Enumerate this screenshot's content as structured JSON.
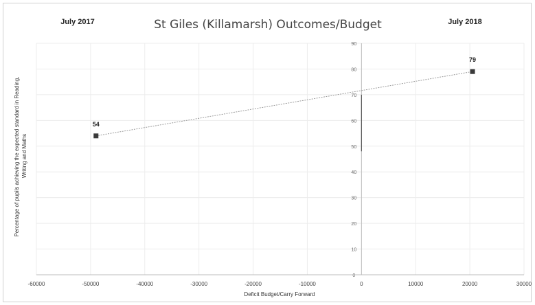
{
  "chart_data": {
    "type": "scatter",
    "title": "St Giles (Killamarsh) Outcomes/Budget",
    "xlabel": "Deficit Budget/Carry Forward",
    "ylabel": "Percentage of pupils achieving  the expected standard in Reading, Writing and Maths",
    "xlim": [
      -60000,
      30000
    ],
    "ylim": [
      0,
      90
    ],
    "x_ticks": [
      "-60000",
      "-50000",
      "-40000",
      "-30000",
      "-20000",
      "-10000",
      "0",
      "10000",
      "20000",
      "30000"
    ],
    "y_ticks": [
      "0",
      "10",
      "20",
      "30",
      "40",
      "50",
      "60",
      "70",
      "80",
      "90"
    ],
    "grid": true,
    "points": [
      {
        "label": "July 2017",
        "x": -49000,
        "y": 54,
        "data_label": "54"
      },
      {
        "label": "July 2018",
        "x": 20500,
        "y": 79,
        "data_label": "79"
      }
    ],
    "annotations": {
      "left": "July 2017",
      "right": "July 2018"
    },
    "colors": {
      "marker": "#3a3a3a",
      "line": "#9a9a9a",
      "grid": "#ececec"
    }
  }
}
